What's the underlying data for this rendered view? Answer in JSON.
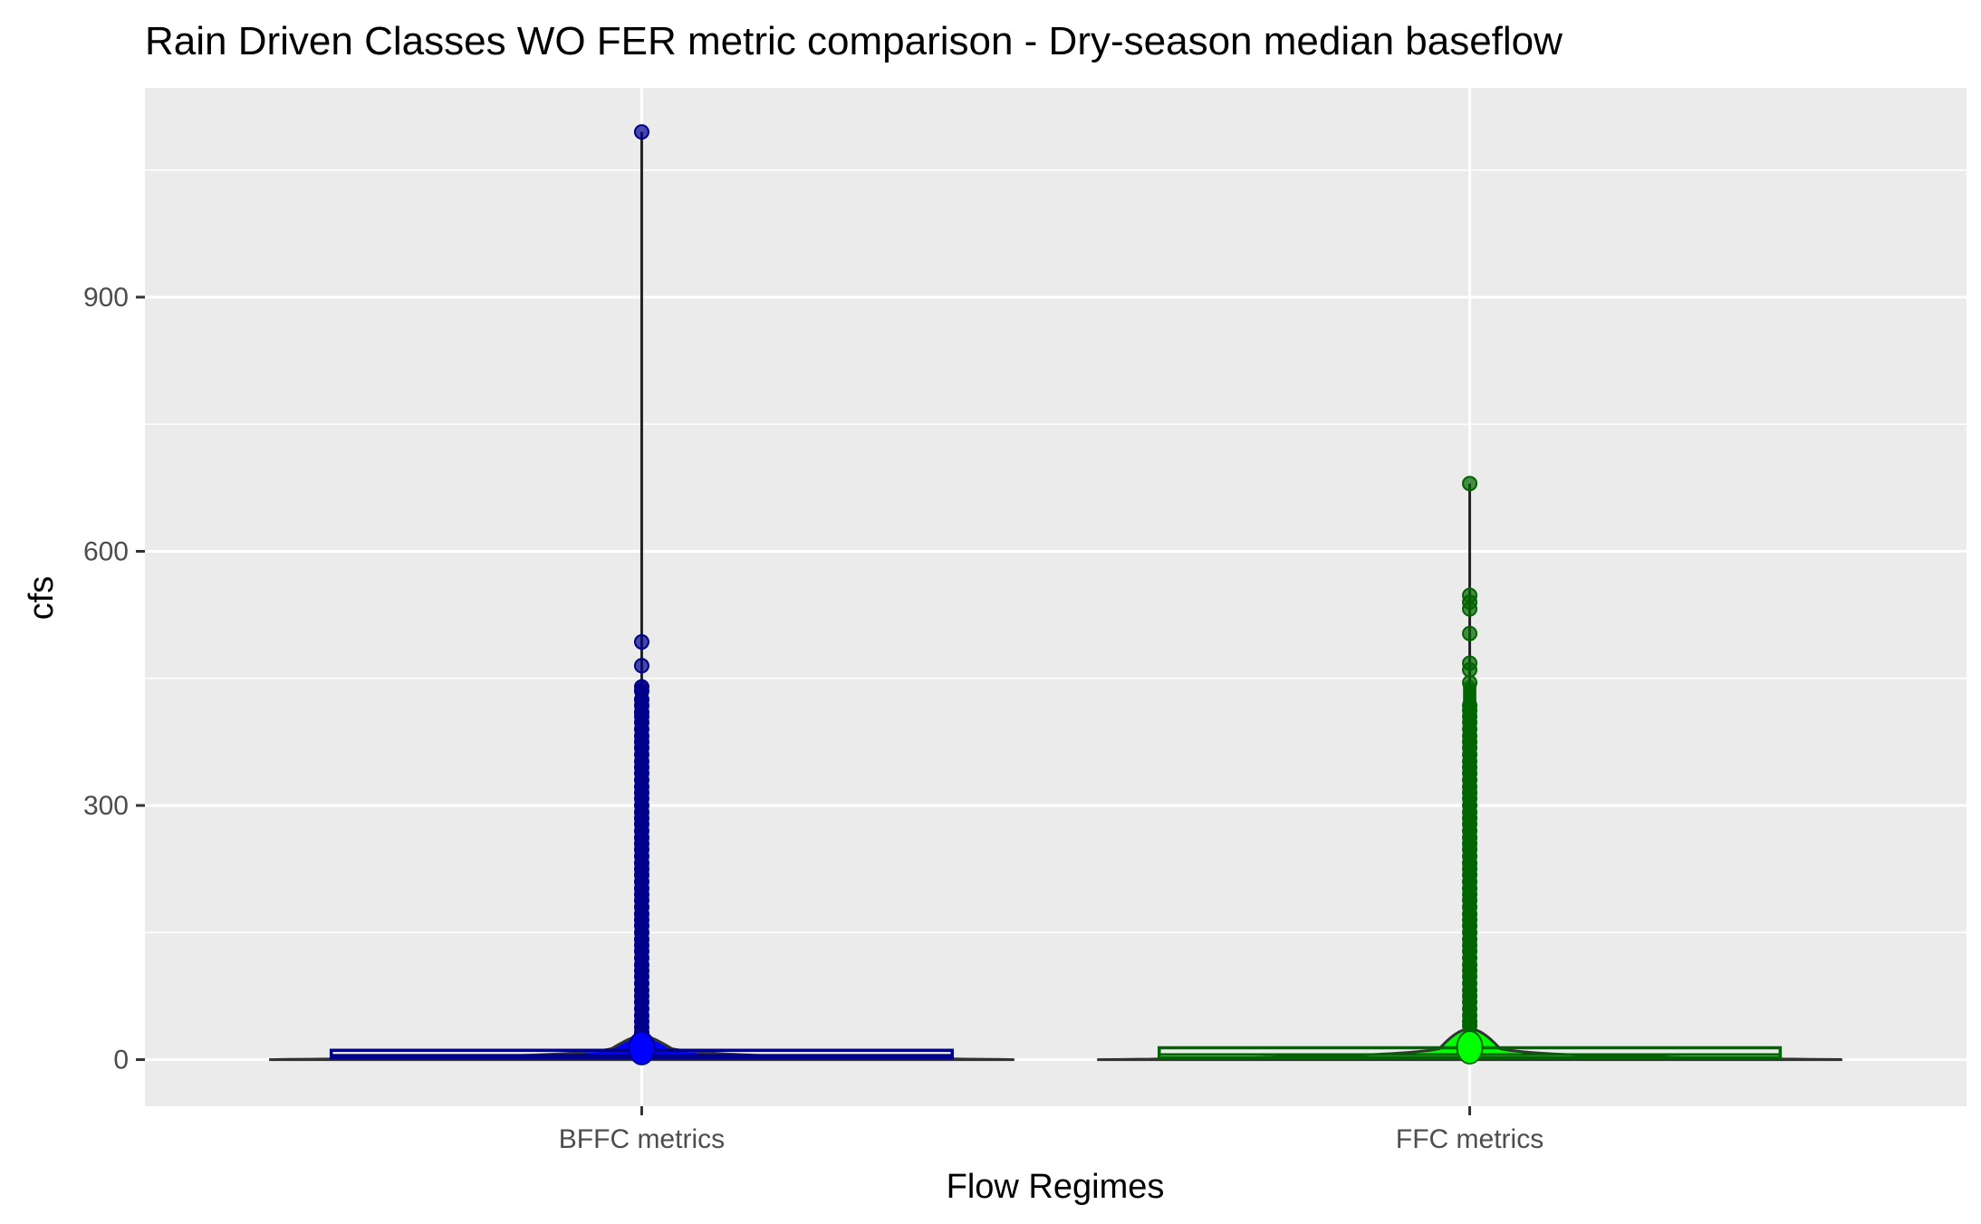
{
  "chart_data": {
    "type": "violin-box",
    "title": "Rain Driven Classes WO FER metric comparison  - Dry-season median baseflow",
    "xlabel": "Flow Regimes",
    "ylabel": "cfs",
    "categories": [
      "BFFC metrics",
      "FFC metrics"
    ],
    "ylim": [
      -55,
      1147
    ],
    "yticks": [
      0,
      300,
      600,
      900
    ],
    "grid": true,
    "series": [
      {
        "category": "BFFC metrics",
        "color": "#0000ff",
        "outline": "#00008b",
        "box": {
          "q1": 2,
          "median": 5,
          "q3": 11,
          "whisker_low": 0,
          "whisker_high": 28,
          "max": 1095
        },
        "outliers": [
          1095,
          493,
          465,
          440,
          435,
          425,
          418,
          410,
          405,
          398,
          390,
          382,
          375,
          368,
          360,
          352,
          345,
          338,
          330,
          322,
          315,
          308,
          300,
          292,
          285,
          278,
          270,
          262,
          255,
          248,
          240,
          232,
          225,
          218,
          210,
          202,
          195,
          188,
          180,
          172,
          165,
          158,
          150,
          142,
          135,
          128,
          120,
          112,
          105,
          98,
          90,
          82,
          75,
          68,
          60,
          52,
          45,
          38,
          32
        ]
      },
      {
        "category": "FFC metrics",
        "color": "#00ff00",
        "outline": "#006400",
        "box": {
          "q1": 2,
          "median": 6,
          "q3": 14,
          "whisker_low": 0,
          "whisker_high": 36,
          "max": 680
        },
        "outliers": [
          680,
          548,
          540,
          532,
          503,
          468,
          460,
          445,
          418,
          412,
          405,
          398,
          390,
          382,
          375,
          368,
          360,
          352,
          345,
          338,
          330,
          322,
          315,
          308,
          300,
          292,
          285,
          278,
          270,
          262,
          255,
          248,
          240,
          232,
          225,
          218,
          210,
          202,
          195,
          188,
          180,
          172,
          165,
          158,
          150,
          142,
          135,
          128,
          120,
          112,
          105,
          98,
          90,
          82,
          75,
          68,
          60,
          52,
          45,
          40
        ]
      }
    ]
  }
}
